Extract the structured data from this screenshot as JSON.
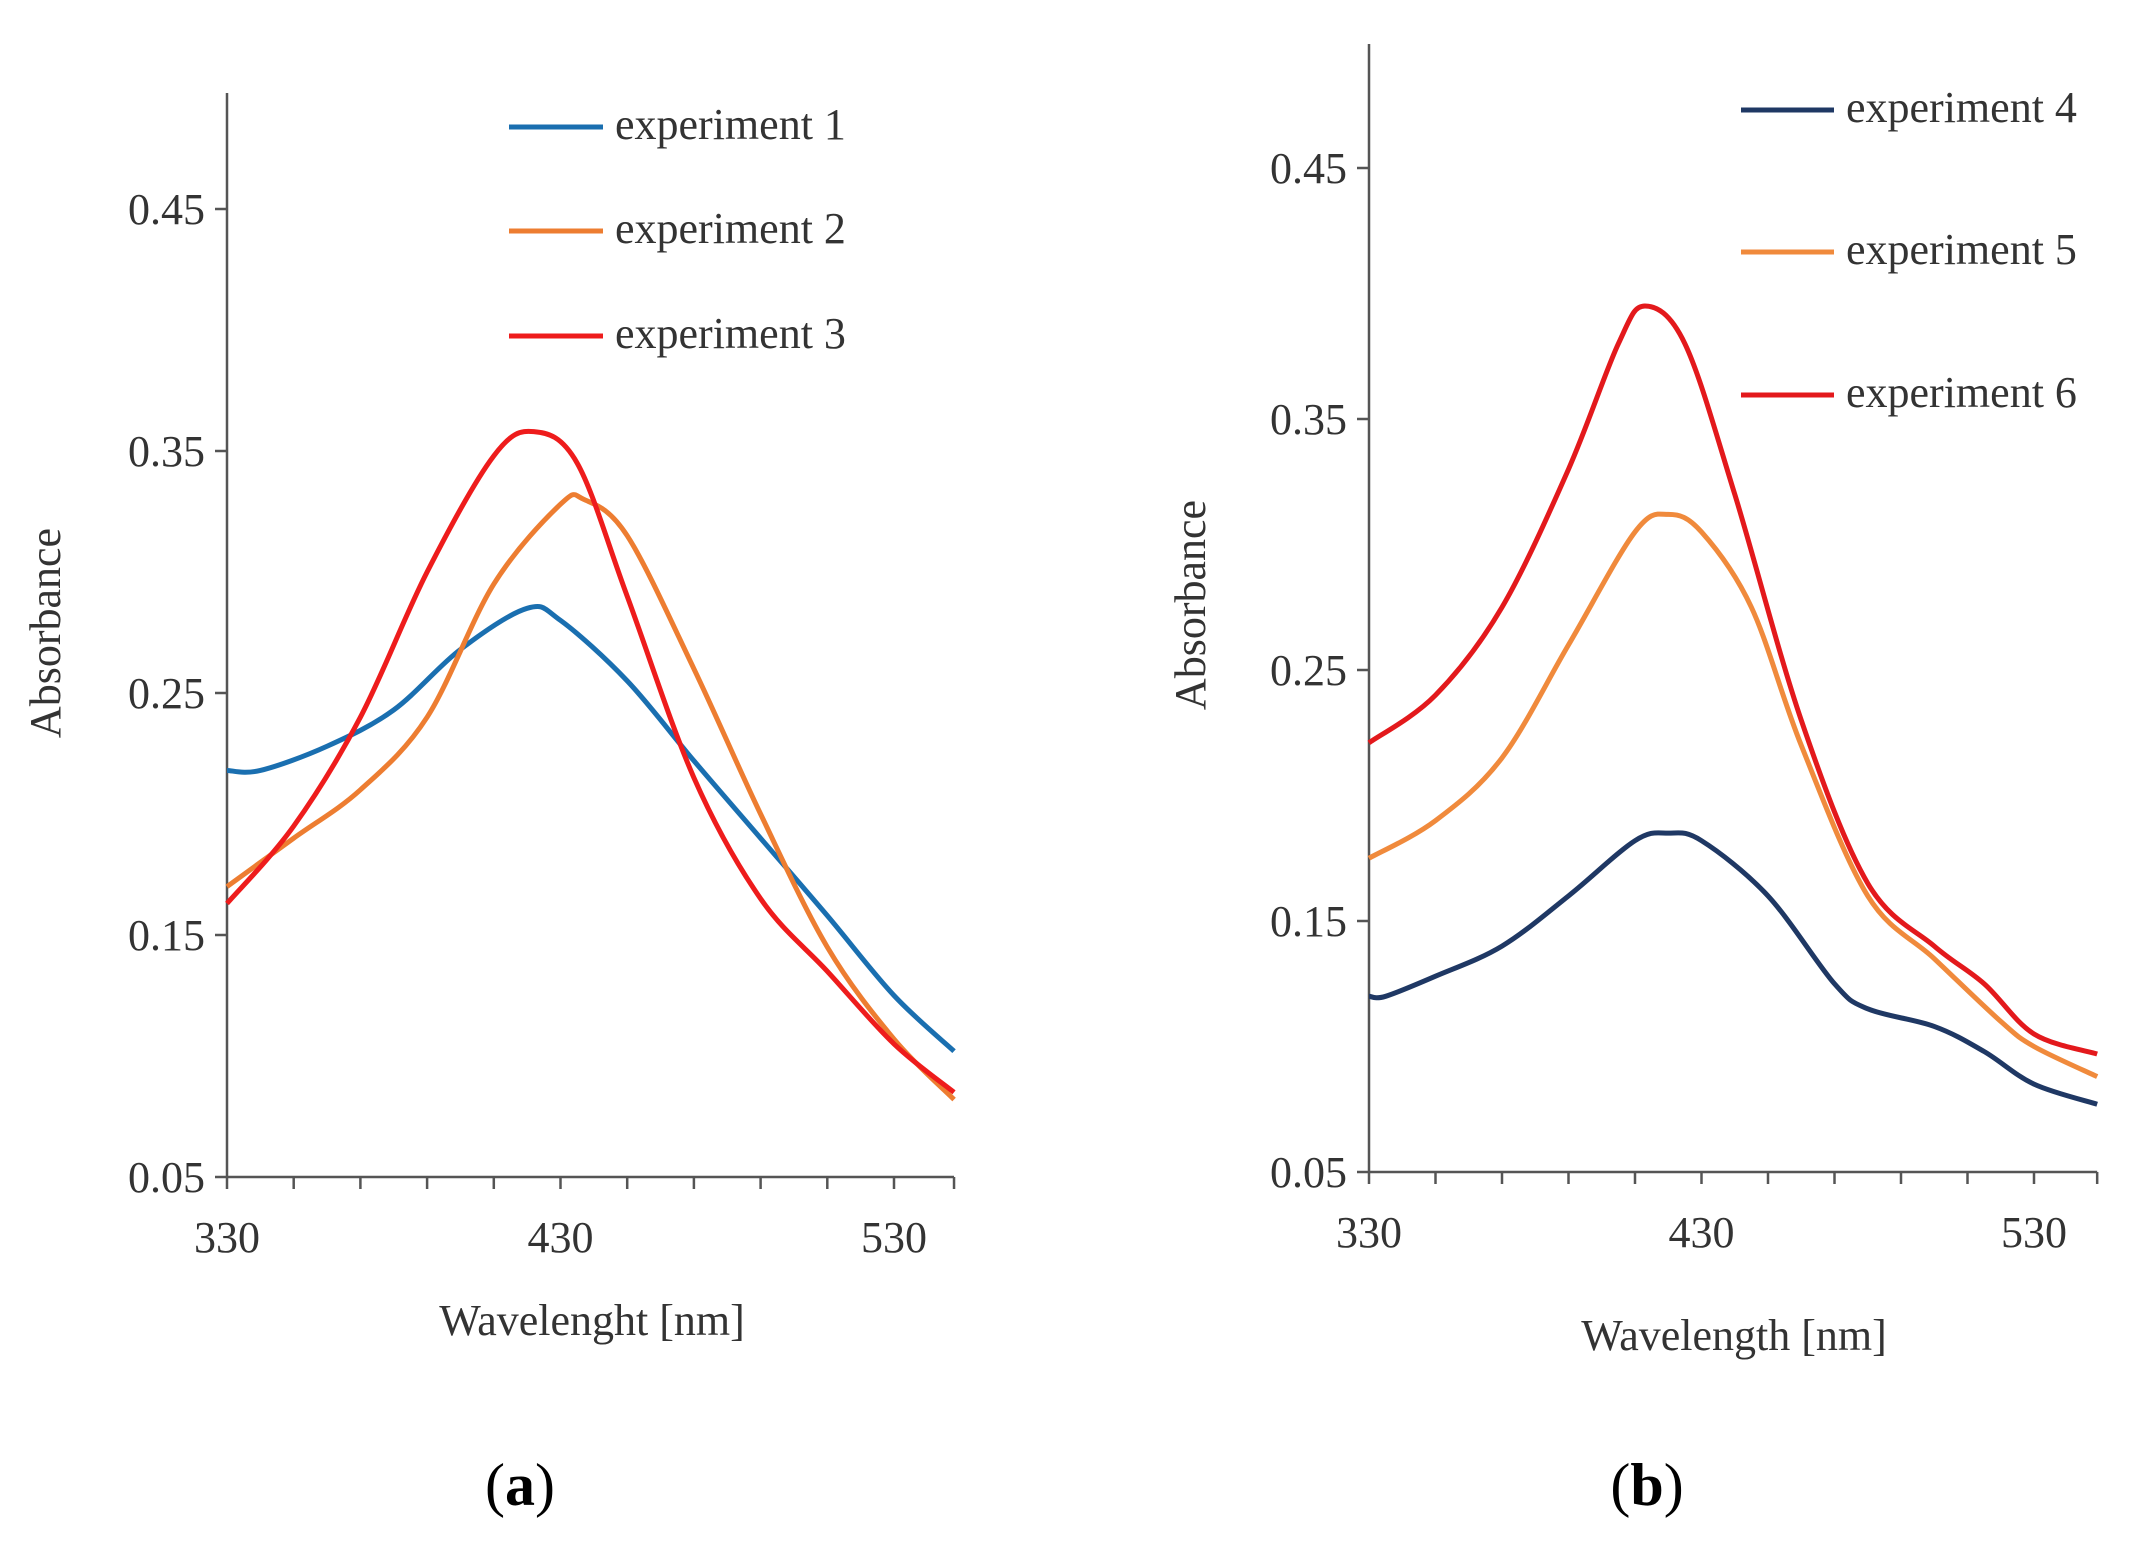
{
  "chart_data": [
    {
      "type": "line",
      "panel_label": "(a)",
      "panel_letter": "a",
      "xlabel": "Wavelenght [nm]",
      "ylabel": "Absorbance",
      "xlim": [
        330,
        548
      ],
      "ylim": [
        0.05,
        0.5
      ],
      "xticks": [
        330,
        430,
        530
      ],
      "xtick_labels": [
        "330",
        "430",
        "530"
      ],
      "yticks": [
        0.05,
        0.15,
        0.25,
        0.35,
        0.45
      ],
      "ytick_labels": [
        "0.05",
        "0.15",
        "0.25",
        "0.35",
        "0.45"
      ],
      "grid": false,
      "legend_position": "top-right",
      "series": [
        {
          "name": "experiment 1",
          "color": "#1a6fb0",
          "x": [
            330,
            340,
            360,
            380,
            400,
            420,
            430,
            450,
            470,
            490,
            510,
            530,
            548
          ],
          "y": [
            0.218,
            0.218,
            0.228,
            0.243,
            0.268,
            0.285,
            0.28,
            0.255,
            0.222,
            0.19,
            0.158,
            0.125,
            0.102
          ]
        },
        {
          "name": "experiment 2",
          "color": "#ed7d31",
          "x": [
            330,
            350,
            370,
            390,
            410,
            430,
            437,
            450,
            470,
            490,
            510,
            530,
            548
          ],
          "y": [
            0.17,
            0.19,
            0.21,
            0.24,
            0.295,
            0.328,
            0.33,
            0.315,
            0.26,
            0.2,
            0.145,
            0.107,
            0.082
          ]
        },
        {
          "name": "experiment 3",
          "color": "#ee1c1c",
          "x": [
            330,
            350,
            370,
            390,
            410,
            422,
            435,
            450,
            470,
            490,
            510,
            530,
            548
          ],
          "y": [
            0.163,
            0.195,
            0.24,
            0.3,
            0.348,
            0.358,
            0.345,
            0.29,
            0.215,
            0.165,
            0.135,
            0.105,
            0.085
          ]
        }
      ]
    },
    {
      "type": "line",
      "panel_label": "(b)",
      "panel_letter": "b",
      "xlabel": "Wavelength [nm]",
      "ylabel": "Absorbance",
      "xlim": [
        330,
        549
      ],
      "ylim": [
        0.05,
        0.5
      ],
      "xticks": [
        330,
        430,
        530
      ],
      "xtick_labels": [
        "330",
        "430",
        "530"
      ],
      "yticks": [
        0.05,
        0.15,
        0.25,
        0.35,
        0.45
      ],
      "ytick_labels": [
        "0.05",
        "0.15",
        "0.25",
        "0.35",
        "0.45"
      ],
      "grid": false,
      "legend_position": "top-right",
      "series": [
        {
          "name": "experiment 4",
          "color": "#1f3864",
          "x": [
            330,
            335,
            350,
            370,
            390,
            410,
            420,
            430,
            450,
            470,
            480,
            500,
            515,
            530,
            549
          ],
          "y": [
            0.12,
            0.12,
            0.128,
            0.14,
            0.16,
            0.182,
            0.185,
            0.182,
            0.16,
            0.125,
            0.115,
            0.108,
            0.098,
            0.085,
            0.077
          ]
        },
        {
          "name": "experiment 5",
          "color": "#f08a3c",
          "x": [
            330,
            350,
            370,
            390,
            410,
            420,
            430,
            445,
            460,
            480,
            500,
            520,
            530,
            549
          ],
          "y": [
            0.175,
            0.19,
            0.215,
            0.26,
            0.305,
            0.312,
            0.305,
            0.275,
            0.22,
            0.16,
            0.135,
            0.11,
            0.1,
            0.088
          ]
        },
        {
          "name": "experiment 6",
          "color": "#e3191c",
          "x": [
            330,
            350,
            370,
            390,
            405,
            413,
            425,
            440,
            460,
            480,
            500,
            515,
            530,
            549
          ],
          "y": [
            0.221,
            0.24,
            0.275,
            0.33,
            0.38,
            0.395,
            0.38,
            0.32,
            0.23,
            0.165,
            0.14,
            0.125,
            0.105,
            0.097
          ]
        }
      ]
    }
  ]
}
